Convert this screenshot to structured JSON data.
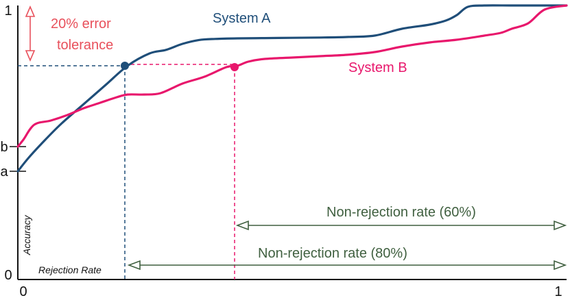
{
  "chart_data": {
    "type": "line",
    "xlabel": "Rejection Rate",
    "ylabel": "Accuracy",
    "xlim": [
      0,
      1
    ],
    "ylim": [
      0,
      1
    ],
    "x_ticks": [
      "0",
      "1"
    ],
    "y_ticks": [
      "0",
      "1"
    ],
    "y_markers": [
      {
        "label": "a",
        "value": 0.395
      },
      {
        "label": "b",
        "value": 0.485
      }
    ],
    "series": [
      {
        "name": "System A",
        "color": "#1f4e79",
        "x": [
          0,
          0.02,
          0.05,
          0.08,
          0.12,
          0.16,
          0.2,
          0.24,
          0.27,
          0.3,
          0.33,
          0.36,
          0.4,
          0.45,
          0.5,
          0.55,
          0.6,
          0.65,
          0.7,
          0.75,
          0.78,
          0.8,
          0.82,
          0.85,
          0.9,
          0.95,
          1.0
        ],
        "y": [
          0.395,
          0.445,
          0.51,
          0.57,
          0.64,
          0.71,
          0.78,
          0.825,
          0.838,
          0.86,
          0.874,
          0.878,
          0.88,
          0.881,
          0.882,
          0.883,
          0.885,
          0.89,
          0.915,
          0.93,
          0.945,
          0.965,
          0.995,
          1.0,
          1.0,
          1.0,
          1.0
        ]
      },
      {
        "name": "System B",
        "color": "#e8176c",
        "x": [
          0,
          0.01,
          0.03,
          0.06,
          0.09,
          0.12,
          0.15,
          0.18,
          0.2,
          0.23,
          0.26,
          0.3,
          0.34,
          0.38,
          0.4,
          0.42,
          0.45,
          0.5,
          0.55,
          0.6,
          0.65,
          0.7,
          0.75,
          0.8,
          0.85,
          0.88,
          0.9,
          0.93,
          0.96,
          1.0
        ],
        "y": [
          0.485,
          0.51,
          0.565,
          0.58,
          0.6,
          0.625,
          0.645,
          0.665,
          0.675,
          0.675,
          0.68,
          0.715,
          0.74,
          0.775,
          0.78,
          0.795,
          0.805,
          0.81,
          0.815,
          0.82,
          0.83,
          0.85,
          0.865,
          0.875,
          0.89,
          0.9,
          0.915,
          0.935,
          0.985,
          1.0
        ]
      }
    ],
    "points": [
      {
        "series": "System A",
        "x": 0.195,
        "y": 0.78
      },
      {
        "series": "System B",
        "x": 0.395,
        "y": 0.775
      }
    ],
    "annotations": {
      "error_tolerance": "20% error\ntolerance",
      "non_rejection_60": "Non-rejection rate (60%)",
      "non_rejection_80": "Non-rejection rate (80%)"
    },
    "colors": {
      "system_a": "#1f4e79",
      "system_b": "#e8176c",
      "tolerance": "#e8505b",
      "range_arrow": "#3f5f3f"
    }
  }
}
